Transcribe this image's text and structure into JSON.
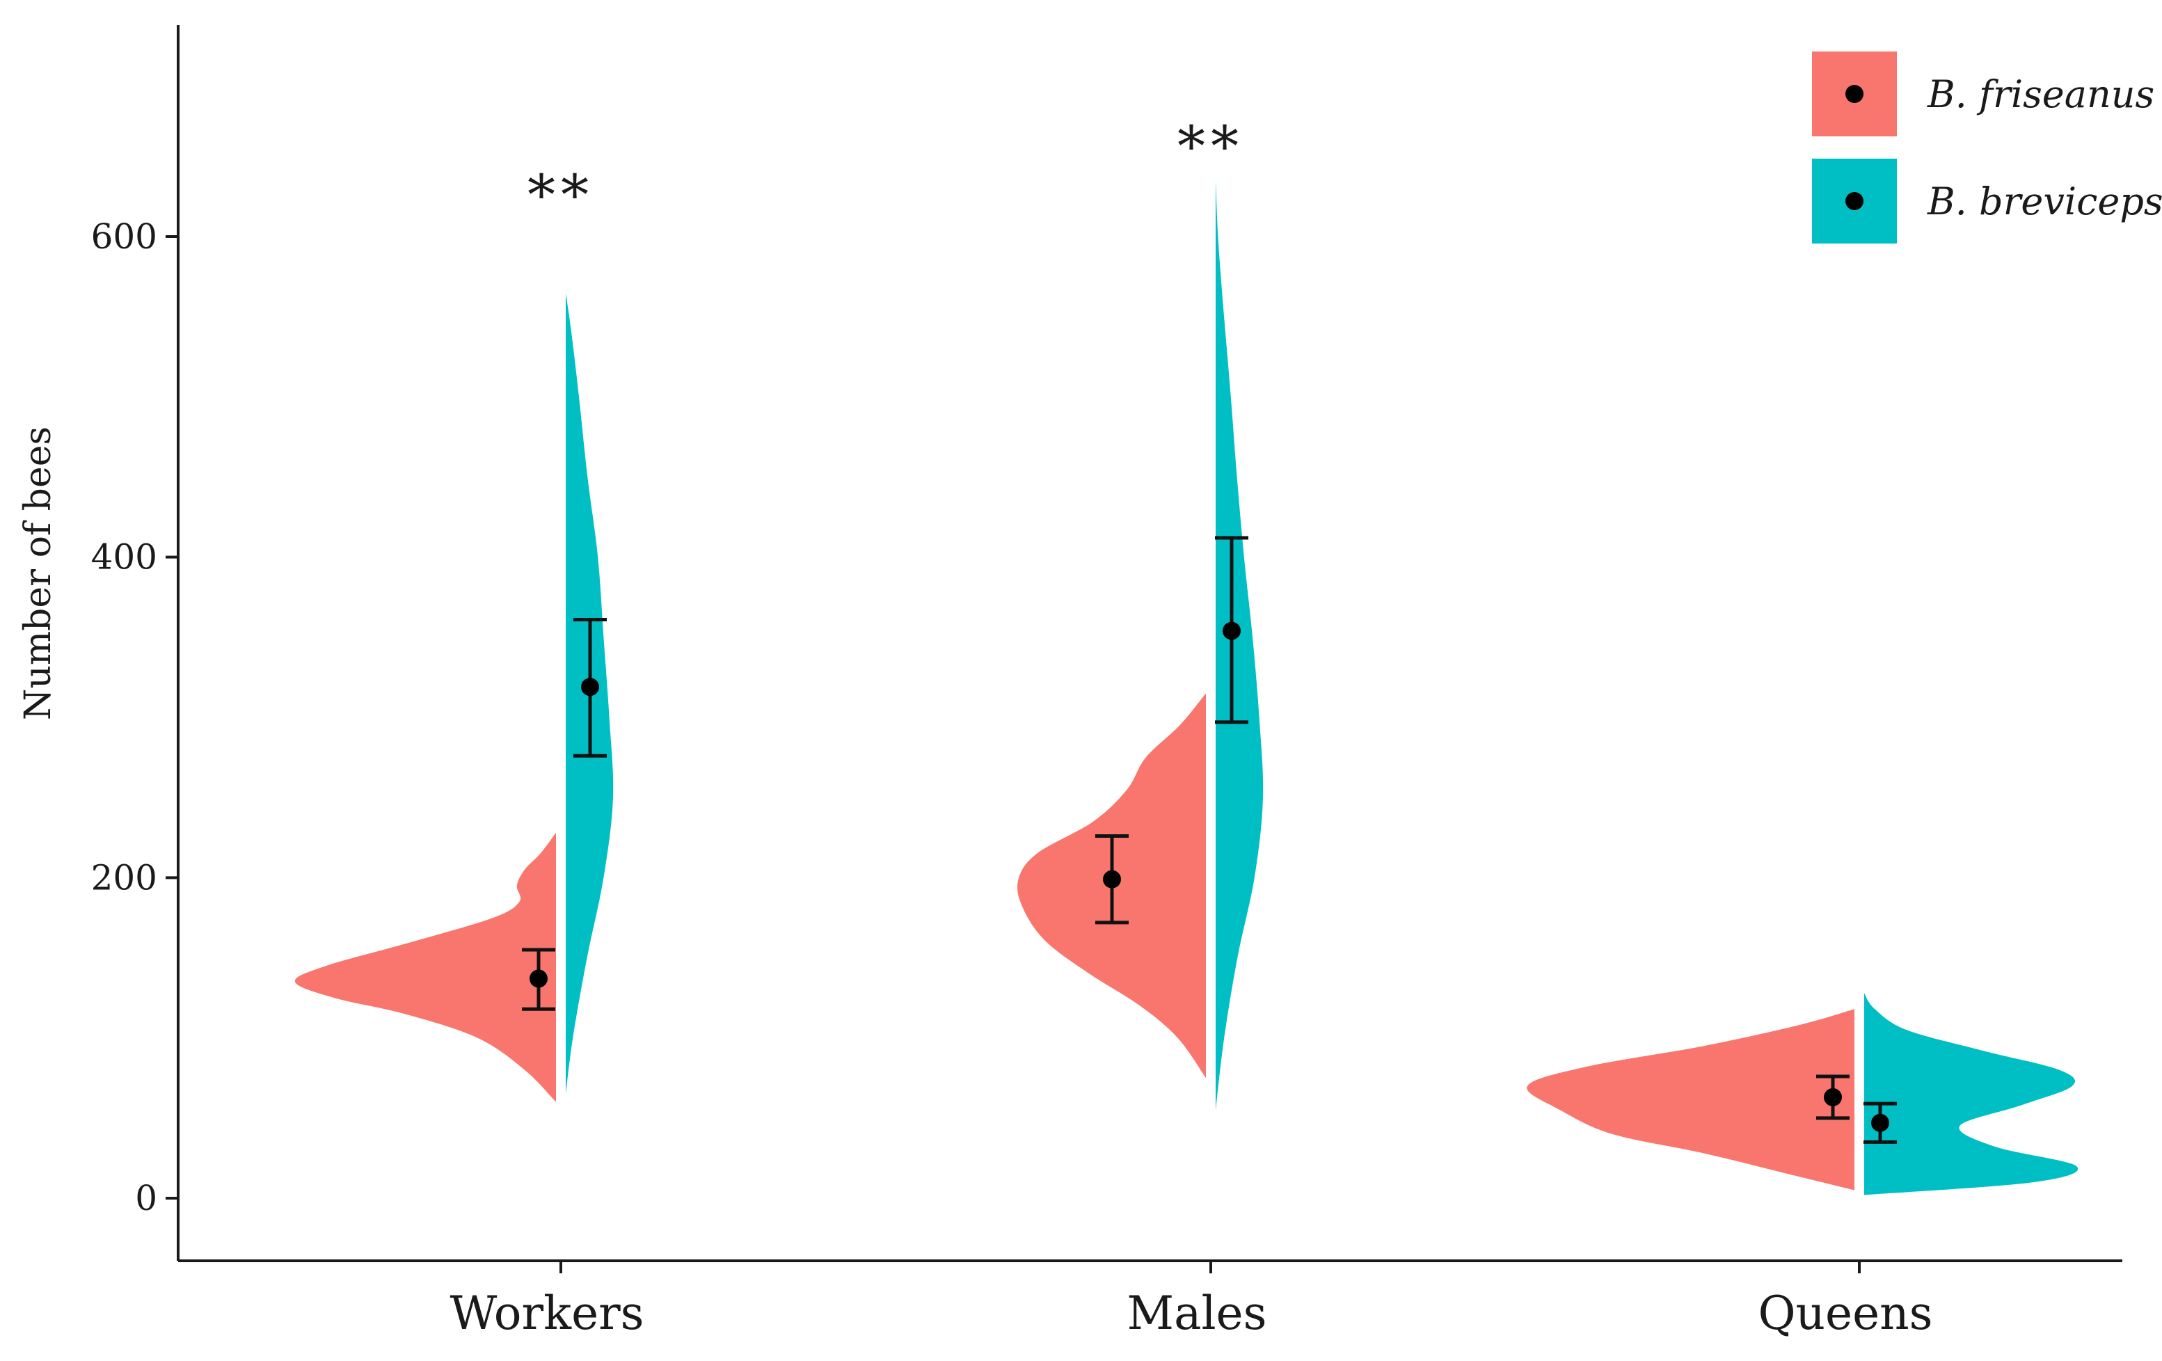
{
  "chart_data": {
    "type": "violin",
    "title": "",
    "ylabel": "Number of bees",
    "xlabel": "",
    "ylim": [
      -40,
      730
    ],
    "y_ticks": [
      0,
      200,
      400,
      600
    ],
    "y_tick_labels": [
      "0",
      "200",
      "400",
      "600"
    ],
    "categories": [
      "Workers",
      "Males",
      "Queens"
    ],
    "legend_position": "top-right",
    "grid": false,
    "significance": [
      {
        "category": "Workers",
        "label": "**"
      },
      {
        "category": "Males",
        "label": "**"
      }
    ],
    "series": [
      {
        "name": "B. friseanus",
        "color": "#f8766d",
        "side": "left",
        "means": [
          137,
          199,
          63
        ],
        "error_low": [
          118,
          172,
          50
        ],
        "error_high": [
          155,
          226,
          76
        ],
        "distributions": [
          [
            [
              60,
              0.0
            ],
            [
              80,
              0.12
            ],
            [
              100,
              0.3
            ],
            [
              115,
              0.58
            ],
            [
              125,
              0.85
            ],
            [
              135,
              1.0
            ],
            [
              145,
              0.88
            ],
            [
              160,
              0.55
            ],
            [
              175,
              0.24
            ],
            [
              185,
              0.14
            ],
            [
              195,
              0.15
            ],
            [
              205,
              0.12
            ],
            [
              215,
              0.06
            ],
            [
              228,
              0.0
            ]
          ],
          [
            [
              75,
              0.0
            ],
            [
              100,
              0.15
            ],
            [
              120,
              0.35
            ],
            [
              140,
              0.62
            ],
            [
              160,
              0.85
            ],
            [
              180,
              0.97
            ],
            [
              198,
              1.0
            ],
            [
              215,
              0.9
            ],
            [
              235,
              0.6
            ],
            [
              255,
              0.42
            ],
            [
              275,
              0.32
            ],
            [
              295,
              0.14
            ],
            [
              315,
              0.0
            ]
          ],
          [
            [
              5,
              0.0
            ],
            [
              15,
              0.2
            ],
            [
              28,
              0.46
            ],
            [
              40,
              0.74
            ],
            [
              55,
              0.9
            ],
            [
              70,
              1.0
            ],
            [
              82,
              0.82
            ],
            [
              95,
              0.46
            ],
            [
              108,
              0.17
            ],
            [
              118,
              0.0
            ]
          ]
        ]
      },
      {
        "name": "B. breviceps",
        "color": "#00bfc4",
        "side": "right",
        "means": [
          319,
          354,
          47
        ],
        "error_low": [
          276,
          297,
          35
        ],
        "error_high": [
          361,
          412,
          59
        ],
        "distributions": [
          [
            [
              65,
              0.0
            ],
            [
              100,
              0.15
            ],
            [
              150,
              0.45
            ],
            [
              200,
              0.8
            ],
            [
              250,
              1.0
            ],
            [
              300,
              0.92
            ],
            [
              350,
              0.8
            ],
            [
              400,
              0.68
            ],
            [
              450,
              0.46
            ],
            [
              500,
              0.28
            ],
            [
              540,
              0.12
            ],
            [
              565,
              0.0
            ]
          ],
          [
            [
              55,
              0.0
            ],
            [
              100,
              0.18
            ],
            [
              150,
              0.46
            ],
            [
              200,
              0.82
            ],
            [
              250,
              1.0
            ],
            [
              300,
              0.92
            ],
            [
              350,
              0.78
            ],
            [
              400,
              0.6
            ],
            [
              450,
              0.45
            ],
            [
              500,
              0.32
            ],
            [
              560,
              0.15
            ],
            [
              600,
              0.05
            ],
            [
              635,
              0.0
            ]
          ],
          [
            [
              2,
              0.0
            ],
            [
              10,
              0.8
            ],
            [
              20,
              1.0
            ],
            [
              32,
              0.62
            ],
            [
              45,
              0.45
            ],
            [
              58,
              0.74
            ],
            [
              70,
              0.98
            ],
            [
              80,
              0.92
            ],
            [
              92,
              0.56
            ],
            [
              105,
              0.2
            ],
            [
              118,
              0.05
            ],
            [
              128,
              0.0
            ]
          ]
        ]
      }
    ]
  }
}
